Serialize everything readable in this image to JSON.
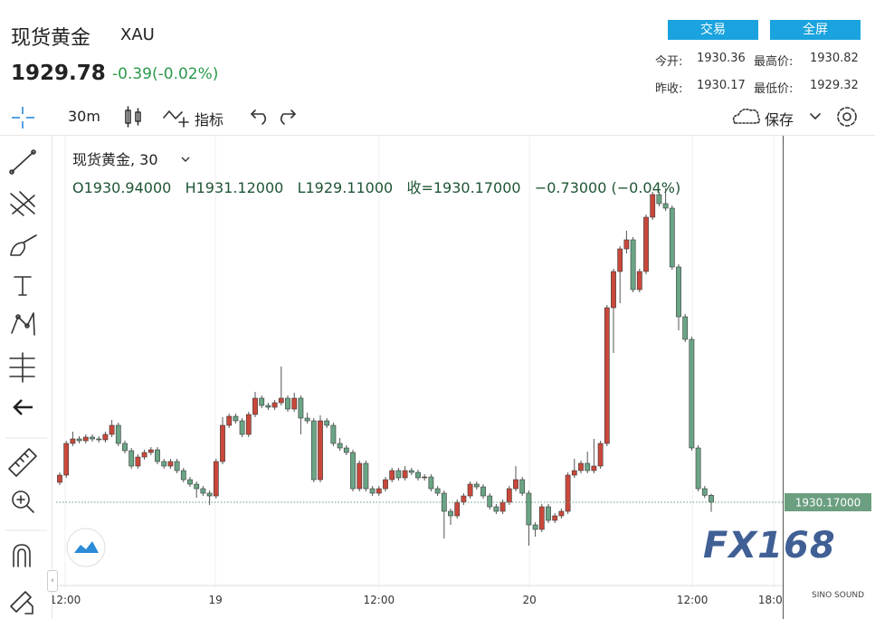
{
  "header": {
    "name": "现货黄金",
    "symbol": "XAU",
    "price": "1929.78",
    "change": "-0.39(-0.02%)",
    "buttons": [
      "交易",
      "全屏"
    ],
    "stats": [
      [
        "今开:",
        "1930.36"
      ],
      [
        "最高价:",
        "1930.82"
      ],
      [
        "昨收:",
        "1930.17"
      ],
      [
        "最低价:",
        "1929.32"
      ]
    ]
  },
  "toolbar": {
    "interval": "30m",
    "indicators": "指标",
    "save": "保存"
  },
  "chart_data": {
    "type": "candlestick",
    "legend_title": "现货黄金, 30",
    "legend_values": [
      "O1930.94000",
      "H1931.12000",
      "L1929.11000",
      "收=1930.17000",
      "−0.73000 (−0.04%)"
    ],
    "up_color": "#c9483b",
    "down_color": "#6aa585",
    "grid": true,
    "ylim": [
      1920.67,
      1970.67
    ],
    "xticks": [
      {
        "value": 0.83,
        "label": "12:00"
      },
      {
        "value": 23.9,
        "label": "19"
      },
      {
        "value": 49,
        "label": "12:00"
      },
      {
        "value": 72.1,
        "label": "20"
      },
      {
        "value": 97.1,
        "label": "12:00"
      },
      {
        "value": 109.6,
        "label": "18:00"
      }
    ],
    "last_price": {
      "value": 1930.17,
      "label": "1930.17000"
    },
    "candles": [
      [
        1932.37,
        1933.47,
        1932.07,
        1933.17
      ],
      [
        1933.17,
        1936.97,
        1932.87,
        1936.67
      ],
      [
        1936.67,
        1937.97,
        1936.37,
        1937.17
      ],
      [
        1937.17,
        1937.47,
        1936.67,
        1936.97
      ],
      [
        1936.97,
        1937.67,
        1936.67,
        1937.37
      ],
      [
        1937.37,
        1937.67,
        1936.87,
        1937.17
      ],
      [
        1937.17,
        1937.47,
        1936.77,
        1937.07
      ],
      [
        1937.07,
        1937.97,
        1936.77,
        1937.67
      ],
      [
        1937.67,
        1939.27,
        1937.37,
        1938.67
      ],
      [
        1938.67,
        1938.97,
        1936.37,
        1936.67
      ],
      [
        1936.67,
        1936.97,
        1935.57,
        1935.87
      ],
      [
        1935.87,
        1936.17,
        1933.87,
        1934.17
      ],
      [
        1934.17,
        1935.47,
        1933.87,
        1935.17
      ],
      [
        1935.17,
        1935.97,
        1934.87,
        1935.67
      ],
      [
        1935.67,
        1936.27,
        1935.37,
        1935.97
      ],
      [
        1935.97,
        1936.27,
        1934.37,
        1934.67
      ],
      [
        1934.67,
        1934.97,
        1933.87,
        1934.17
      ],
      [
        1934.17,
        1934.97,
        1933.87,
        1934.67
      ],
      [
        1934.67,
        1934.97,
        1933.37,
        1933.67
      ],
      [
        1933.67,
        1933.97,
        1932.37,
        1932.67
      ],
      [
        1932.67,
        1932.97,
        1931.87,
        1932.17
      ],
      [
        1932.17,
        1932.47,
        1930.67,
        1931.67
      ],
      [
        1931.67,
        1931.97,
        1930.87,
        1931.17
      ],
      [
        1931.17,
        1931.47,
        1929.87,
        1930.87
      ],
      [
        1930.87,
        1934.97,
        1930.57,
        1934.67
      ],
      [
        1934.67,
        1939.57,
        1934.37,
        1938.67
      ],
      [
        1938.67,
        1939.97,
        1938.37,
        1939.67
      ],
      [
        1939.67,
        1939.97,
        1938.87,
        1939.17
      ],
      [
        1939.17,
        1939.47,
        1937.37,
        1937.67
      ],
      [
        1937.67,
        1940.17,
        1937.37,
        1939.87
      ],
      [
        1939.87,
        1942.37,
        1939.57,
        1941.67
      ],
      [
        1941.67,
        1941.97,
        1940.57,
        1940.87
      ],
      [
        1940.87,
        1941.17,
        1940.37,
        1940.67
      ],
      [
        1940.67,
        1941.47,
        1940.37,
        1941.17
      ],
      [
        1941.17,
        1945.17,
        1940.87,
        1941.67
      ],
      [
        1941.67,
        1941.97,
        1940.17,
        1940.47
      ],
      [
        1940.47,
        1942.27,
        1940.17,
        1941.67
      ],
      [
        1941.67,
        1941.97,
        1937.67,
        1939.47
      ],
      [
        1939.47,
        1940.07,
        1938.87,
        1939.17
      ],
      [
        1939.17,
        1939.47,
        1932.37,
        1932.67
      ],
      [
        1932.67,
        1939.77,
        1932.37,
        1939.17
      ],
      [
        1939.17,
        1939.47,
        1938.37,
        1938.67
      ],
      [
        1938.67,
        1938.97,
        1936.37,
        1936.67
      ],
      [
        1936.67,
        1937.27,
        1935.87,
        1936.17
      ],
      [
        1936.17,
        1936.47,
        1935.37,
        1935.67
      ],
      [
        1935.67,
        1935.97,
        1931.37,
        1931.67
      ],
      [
        1931.67,
        1934.77,
        1931.37,
        1934.47
      ],
      [
        1934.47,
        1934.77,
        1931.37,
        1931.67
      ],
      [
        1931.67,
        1931.97,
        1930.87,
        1931.17
      ],
      [
        1931.17,
        1931.97,
        1930.87,
        1931.67
      ],
      [
        1931.67,
        1932.97,
        1931.37,
        1932.67
      ],
      [
        1932.67,
        1933.97,
        1932.37,
        1933.67
      ],
      [
        1933.67,
        1933.97,
        1932.57,
        1932.87
      ],
      [
        1932.87,
        1934.17,
        1932.57,
        1933.67
      ],
      [
        1933.67,
        1933.97,
        1933.17,
        1933.47
      ],
      [
        1933.47,
        1933.77,
        1932.57,
        1932.87
      ],
      [
        1932.87,
        1933.27,
        1932.57,
        1932.97
      ],
      [
        1932.97,
        1933.27,
        1931.37,
        1931.67
      ],
      [
        1931.67,
        1931.97,
        1930.87,
        1931.17
      ],
      [
        1931.17,
        1931.47,
        1926.17,
        1929.17
      ],
      [
        1929.17,
        1929.47,
        1927.67,
        1928.67
      ],
      [
        1928.67,
        1930.47,
        1928.37,
        1930.17
      ],
      [
        1930.17,
        1931.17,
        1929.87,
        1930.87
      ],
      [
        1930.87,
        1932.47,
        1930.57,
        1932.17
      ],
      [
        1932.17,
        1932.47,
        1931.57,
        1931.87
      ],
      [
        1931.87,
        1932.17,
        1930.57,
        1930.87
      ],
      [
        1930.87,
        1931.17,
        1929.37,
        1929.67
      ],
      [
        1929.67,
        1929.97,
        1928.87,
        1929.17
      ],
      [
        1929.17,
        1930.47,
        1928.87,
        1930.17
      ],
      [
        1930.17,
        1931.97,
        1929.87,
        1931.67
      ],
      [
        1931.67,
        1934.17,
        1931.37,
        1932.67
      ],
      [
        1932.67,
        1932.97,
        1930.87,
        1931.17
      ],
      [
        1931.17,
        1931.47,
        1925.37,
        1927.67
      ],
      [
        1927.67,
        1927.97,
        1926.37,
        1927.17
      ],
      [
        1927.17,
        1929.97,
        1926.87,
        1929.67
      ],
      [
        1929.67,
        1929.97,
        1927.87,
        1928.17
      ],
      [
        1928.17,
        1928.97,
        1927.87,
        1928.67
      ],
      [
        1928.67,
        1929.47,
        1928.37,
        1929.17
      ],
      [
        1929.17,
        1933.47,
        1928.87,
        1933.17
      ],
      [
        1933.17,
        1934.97,
        1932.87,
        1933.67
      ],
      [
        1933.67,
        1934.77,
        1933.37,
        1934.47
      ],
      [
        1934.47,
        1935.77,
        1933.37,
        1933.67
      ],
      [
        1933.67,
        1937.17,
        1933.37,
        1934.17
      ],
      [
        1934.17,
        1936.97,
        1933.87,
        1936.67
      ],
      [
        1936.67,
        1951.97,
        1936.37,
        1951.67
      ],
      [
        1951.67,
        1955.97,
        1946.67,
        1955.67
      ],
      [
        1955.67,
        1958.47,
        1952.17,
        1958.17
      ],
      [
        1958.17,
        1960.17,
        1957.67,
        1959.17
      ],
      [
        1959.17,
        1959.47,
        1953.37,
        1953.67
      ],
      [
        1953.67,
        1955.97,
        1953.37,
        1955.67
      ],
      [
        1955.67,
        1961.97,
        1955.37,
        1961.67
      ],
      [
        1961.67,
        1964.47,
        1961.37,
        1964.17
      ],
      [
        1964.17,
        1964.47,
        1962.87,
        1963.17
      ],
      [
        1963.17,
        1964.87,
        1962.37,
        1962.67
      ],
      [
        1962.67,
        1962.97,
        1955.87,
        1956.17
      ],
      [
        1956.17,
        1956.47,
        1949.17,
        1950.67
      ],
      [
        1950.67,
        1950.97,
        1947.87,
        1948.17
      ],
      [
        1948.17,
        1948.47,
        1935.87,
        1936.17
      ],
      [
        1936.17,
        1936.47,
        1931.37,
        1931.67
      ],
      [
        1931.67,
        1931.97,
        1930.64,
        1930.94
      ],
      [
        1930.94,
        1931.12,
        1929.11,
        1930.17
      ]
    ]
  },
  "watermark": "FX168",
  "badge": "SINO SOUND"
}
